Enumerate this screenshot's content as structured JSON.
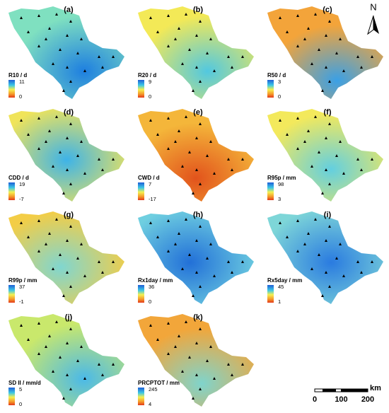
{
  "panels": [
    {
      "label": "(a)",
      "legend_title": "R10 / d",
      "legend_max": 11,
      "legend_min": 0
    },
    {
      "label": "(b)",
      "legend_title": "R20 / d",
      "legend_max": 9,
      "legend_min": 0
    },
    {
      "label": "(c)",
      "legend_title": "R50 / d",
      "legend_max": 3,
      "legend_min": 0
    },
    {
      "label": "(d)",
      "legend_title": "CDD / d",
      "legend_max": 19,
      "legend_min": -7
    },
    {
      "label": "(e)",
      "legend_title": "CWD / d",
      "legend_max": 7,
      "legend_min": -17
    },
    {
      "label": "(f)",
      "legend_title": "R95p / mm",
      "legend_max": 98,
      "legend_min": 3
    },
    {
      "label": "(g)",
      "legend_title": "R99p / mm",
      "legend_max": 37,
      "legend_min": -1
    },
    {
      "label": "(h)",
      "legend_title": "Rx1day / mm",
      "legend_max": 36,
      "legend_min": 0
    },
    {
      "label": "(i)",
      "legend_title": "Rx5day / mm",
      "legend_max": 45,
      "legend_min": 1
    },
    {
      "label": "(j)",
      "legend_title": "SD II / mm/d",
      "legend_max": 5,
      "legend_min": 0
    },
    {
      "label": "(k)",
      "legend_title": "PRCPTOT / mm",
      "legend_max": 245,
      "legend_min": 4
    }
  ],
  "north_label": "N",
  "scale_bar": {
    "unit": "km",
    "ticks": [
      0,
      100,
      200
    ]
  }
}
